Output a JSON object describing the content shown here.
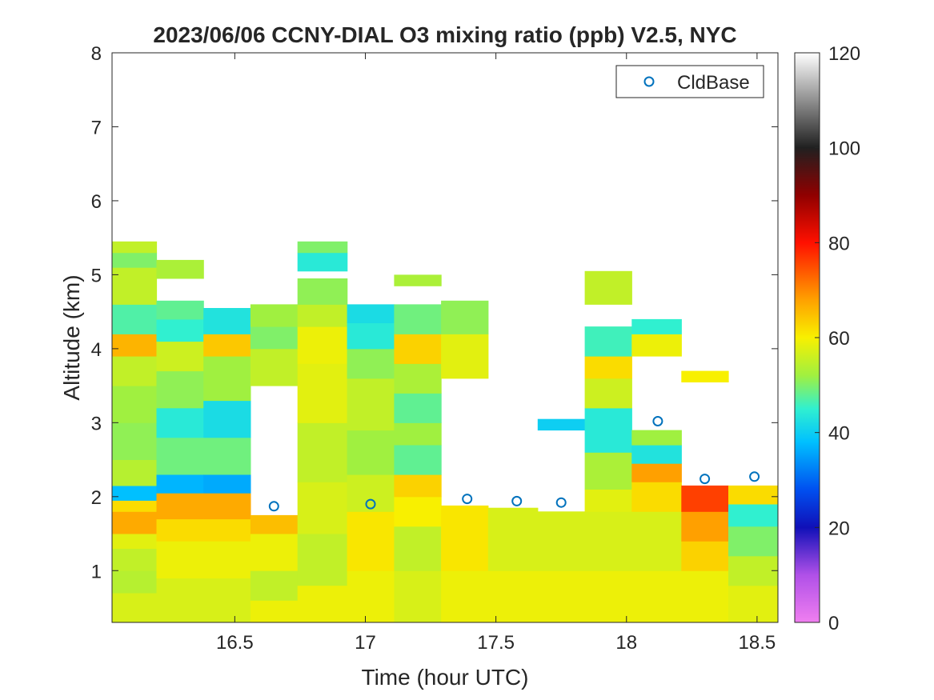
{
  "chart_data": {
    "type": "heatmap",
    "title": "2023/06/06 CCNY-DIAL O3 mixing ratio (ppb) V2.5, NYC",
    "xlabel": "Time (hour UTC)",
    "ylabel": "Altitude (km)",
    "xlim": [
      16.03,
      18.58
    ],
    "ylim": [
      0.3,
      8
    ],
    "xticks": [
      16.5,
      17,
      17.5,
      18,
      18.5
    ],
    "xtick_labels": [
      "16.5",
      "17",
      "17.5",
      "18",
      "18.5"
    ],
    "yticks": [
      1,
      2,
      3,
      4,
      5,
      6,
      7,
      8
    ],
    "ytick_labels": [
      "1",
      "2",
      "3",
      "4",
      "5",
      "6",
      "7",
      "8"
    ],
    "colorbar": {
      "range": [
        0,
        120
      ],
      "ticks": [
        0,
        20,
        40,
        60,
        80,
        100,
        120
      ],
      "tick_labels": [
        "0",
        "20",
        "40",
        "60",
        "80",
        "100",
        "120"
      ],
      "stops": [
        [
          0,
          "#f07ff0"
        ],
        [
          10,
          "#b050e8"
        ],
        [
          20,
          "#1010b8"
        ],
        [
          28,
          "#0050f0"
        ],
        [
          38,
          "#00c0ff"
        ],
        [
          45,
          "#30f0d0"
        ],
        [
          52,
          "#a0f040"
        ],
        [
          60,
          "#f8f000"
        ],
        [
          68,
          "#ffa000"
        ],
        [
          80,
          "#ff1000"
        ],
        [
          90,
          "#900000"
        ],
        [
          100,
          "#202020"
        ],
        [
          110,
          "#909090"
        ],
        [
          120,
          "#ffffff"
        ]
      ]
    },
    "legend": {
      "position": "top-right",
      "entries": [
        "CldBase"
      ]
    },
    "columns": [
      {
        "t0": 16.03,
        "t1": 16.2,
        "layers": [
          [
            0.3,
            0.7,
            57
          ],
          [
            0.7,
            1.0,
            54
          ],
          [
            1.0,
            1.3,
            55
          ],
          [
            1.3,
            1.5,
            58
          ],
          [
            1.5,
            1.8,
            67
          ],
          [
            1.8,
            1.95,
            62
          ],
          [
            1.95,
            2.15,
            38
          ],
          [
            2.15,
            2.5,
            54
          ],
          [
            2.5,
            3.0,
            51
          ],
          [
            3.0,
            3.5,
            52
          ],
          [
            3.5,
            3.9,
            55
          ],
          [
            3.9,
            4.2,
            66
          ],
          [
            4.2,
            4.6,
            47
          ],
          [
            4.6,
            5.1,
            55
          ],
          [
            5.1,
            5.3,
            50
          ],
          [
            5.3,
            5.45,
            55
          ]
        ]
      },
      {
        "t0": 16.2,
        "t1": 16.38,
        "layers": [
          [
            0.3,
            0.9,
            57
          ],
          [
            0.9,
            1.4,
            59
          ],
          [
            1.4,
            1.7,
            62
          ],
          [
            1.7,
            2.05,
            67
          ],
          [
            2.05,
            2.3,
            37
          ],
          [
            2.3,
            2.8,
            49
          ],
          [
            2.8,
            3.2,
            44
          ],
          [
            3.2,
            3.7,
            51
          ],
          [
            3.7,
            4.1,
            56
          ],
          [
            4.1,
            4.4,
            45
          ],
          [
            4.4,
            4.65,
            48
          ],
          [
            4.95,
            5.2,
            53
          ]
        ]
      },
      {
        "t0": 16.38,
        "t1": 16.56,
        "layers": [
          [
            0.3,
            0.9,
            57
          ],
          [
            0.9,
            1.4,
            59
          ],
          [
            1.4,
            1.7,
            62
          ],
          [
            1.7,
            2.05,
            67
          ],
          [
            2.05,
            2.3,
            36
          ],
          [
            2.3,
            2.8,
            49
          ],
          [
            2.8,
            3.3,
            42
          ],
          [
            3.3,
            3.9,
            52
          ],
          [
            3.9,
            4.2,
            64
          ],
          [
            4.2,
            4.55,
            43
          ]
        ]
      },
      {
        "t0": 16.56,
        "t1": 16.74,
        "layers": [
          [
            0.3,
            0.6,
            59
          ],
          [
            0.6,
            1.0,
            55
          ],
          [
            1.0,
            1.5,
            59
          ],
          [
            1.5,
            1.75,
            65
          ],
          [
            3.5,
            4.0,
            55
          ],
          [
            4.0,
            4.3,
            50
          ],
          [
            4.3,
            4.6,
            52
          ]
        ]
      },
      {
        "t0": 16.74,
        "t1": 16.93,
        "layers": [
          [
            0.3,
            0.8,
            59
          ],
          [
            0.8,
            1.5,
            55
          ],
          [
            1.5,
            2.2,
            57
          ],
          [
            2.2,
            3.0,
            55
          ],
          [
            3.0,
            3.8,
            58
          ],
          [
            3.8,
            4.3,
            59
          ],
          [
            4.3,
            4.6,
            55
          ],
          [
            4.6,
            4.95,
            51
          ],
          [
            5.05,
            5.3,
            44
          ],
          [
            5.3,
            5.45,
            50
          ]
        ]
      },
      {
        "t0": 16.93,
        "t1": 17.11,
        "layers": [
          [
            0.3,
            1.0,
            59
          ],
          [
            1.0,
            1.8,
            61
          ],
          [
            1.8,
            2.3,
            56
          ],
          [
            2.3,
            2.9,
            52
          ],
          [
            2.9,
            3.6,
            55
          ],
          [
            3.6,
            4.0,
            51
          ],
          [
            4.0,
            4.35,
            44
          ],
          [
            4.35,
            4.6,
            42
          ]
        ]
      },
      {
        "t0": 17.11,
        "t1": 17.29,
        "layers": [
          [
            0.3,
            1.0,
            57
          ],
          [
            1.0,
            1.6,
            55
          ],
          [
            1.6,
            2.0,
            60
          ],
          [
            2.0,
            2.3,
            63
          ],
          [
            2.3,
            2.7,
            48
          ],
          [
            2.7,
            3.0,
            52
          ],
          [
            3.0,
            3.4,
            48
          ],
          [
            3.4,
            3.8,
            53
          ],
          [
            3.8,
            4.2,
            63
          ],
          [
            4.2,
            4.6,
            49
          ],
          [
            4.85,
            5.0,
            53
          ]
        ]
      },
      {
        "t0": 17.29,
        "t1": 17.47,
        "layers": [
          [
            0.3,
            1.0,
            59
          ],
          [
            1.0,
            1.88,
            61
          ],
          [
            3.6,
            4.2,
            58
          ],
          [
            4.2,
            4.65,
            51
          ]
        ]
      },
      {
        "t0": 17.47,
        "t1": 17.66,
        "layers": [
          [
            0.3,
            1.0,
            59
          ],
          [
            1.0,
            1.85,
            57
          ]
        ]
      },
      {
        "t0": 17.66,
        "t1": 17.84,
        "layers": [
          [
            0.3,
            1.0,
            59
          ],
          [
            1.0,
            1.8,
            57
          ],
          [
            2.9,
            3.05,
            40
          ]
        ]
      },
      {
        "t0": 17.84,
        "t1": 18.02,
        "layers": [
          [
            0.3,
            1.0,
            59
          ],
          [
            1.0,
            1.8,
            57
          ],
          [
            1.8,
            2.1,
            58
          ],
          [
            2.1,
            2.6,
            53
          ],
          [
            2.6,
            3.2,
            44
          ],
          [
            3.2,
            3.6,
            56
          ],
          [
            3.6,
            3.9,
            62
          ],
          [
            3.9,
            4.3,
            46
          ],
          [
            4.6,
            5.05,
            55
          ]
        ]
      },
      {
        "t0": 18.02,
        "t1": 18.21,
        "layers": [
          [
            0.3,
            1.0,
            59
          ],
          [
            1.0,
            1.8,
            57
          ],
          [
            1.8,
            2.2,
            62
          ],
          [
            2.2,
            2.45,
            68
          ],
          [
            2.45,
            2.7,
            43
          ],
          [
            2.7,
            2.9,
            52
          ],
          [
            3.9,
            4.2,
            59
          ],
          [
            4.2,
            4.4,
            45
          ]
        ]
      },
      {
        "t0": 18.21,
        "t1": 18.39,
        "layers": [
          [
            0.3,
            1.0,
            59
          ],
          [
            1.0,
            1.4,
            63
          ],
          [
            1.4,
            1.8,
            68
          ],
          [
            1.8,
            2.15,
            76
          ],
          [
            3.55,
            3.7,
            60
          ]
        ]
      },
      {
        "t0": 18.39,
        "t1": 18.58,
        "layers": [
          [
            0.3,
            0.8,
            58
          ],
          [
            0.8,
            1.2,
            55
          ],
          [
            1.2,
            1.6,
            50
          ],
          [
            1.6,
            1.9,
            45
          ],
          [
            1.9,
            2.15,
            62
          ]
        ]
      }
    ],
    "cloud_base": {
      "name": "CldBase",
      "x": [
        16.65,
        17.02,
        17.39,
        17.58,
        17.75,
        18.12,
        18.3,
        18.49
      ],
      "y": [
        1.87,
        1.9,
        1.97,
        1.94,
        1.92,
        3.02,
        2.24,
        2.27
      ]
    }
  }
}
